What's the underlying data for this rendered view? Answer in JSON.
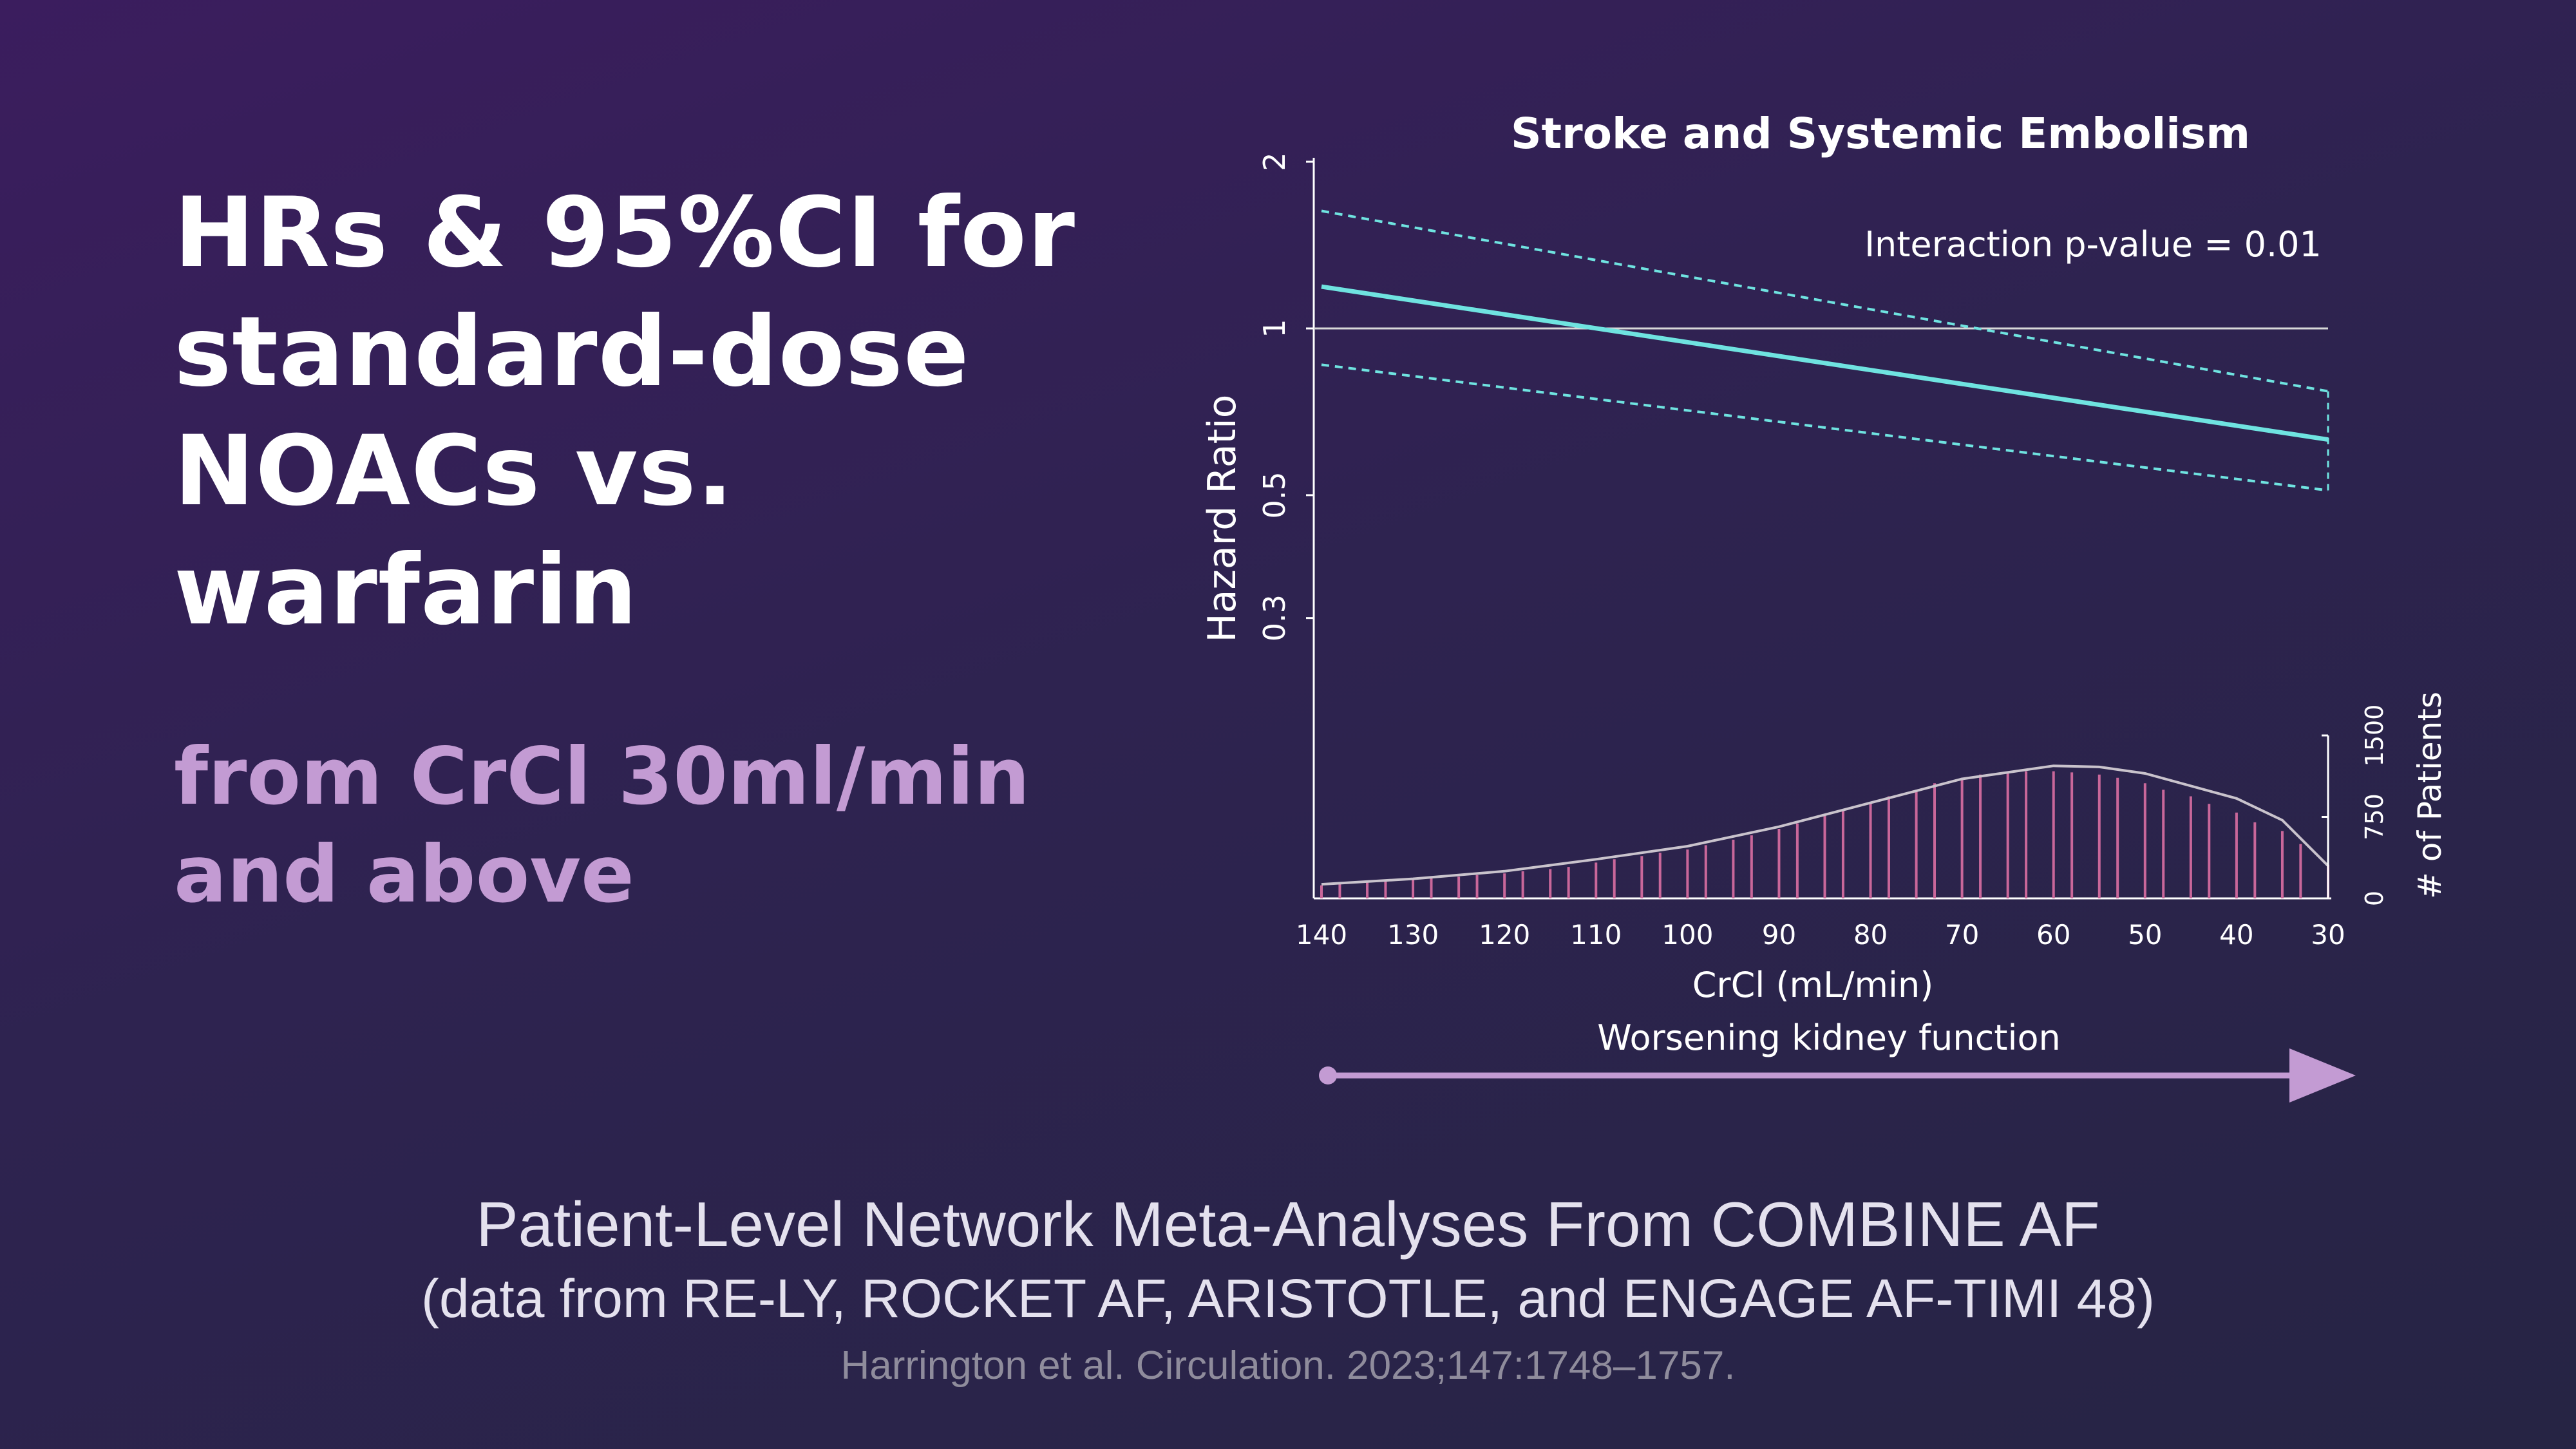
{
  "headline": {
    "line1": "HRs & 95%CI for",
    "line2": "standard-dose",
    "line3": "NOACs vs.",
    "line4": "warfarin"
  },
  "subhead": {
    "line1": "from CrCl 30ml/min",
    "line2": "and above"
  },
  "chart_data": {
    "type": "line",
    "title": "Stroke and Systemic Embolism",
    "annotation": "Interaction p-value = 0.01",
    "ylabel": "Hazard Ratio",
    "xlabel": "CrCl (mL/min)",
    "direction_label": "Worsening kidney function",
    "x_ticks": [
      "140",
      "130",
      "120",
      "110",
      "100",
      "90",
      "80",
      "70",
      "60",
      "50",
      "40",
      "30"
    ],
    "y_ticks": [
      "2",
      "1",
      "0.5",
      "0.3"
    ],
    "y_scale": "log",
    "reference_line": 1,
    "hr_line": {
      "x": [
        140,
        30
      ],
      "y": [
        1.19,
        0.63
      ]
    },
    "ci_upper": {
      "x": [
        140,
        30
      ],
      "y": [
        1.63,
        0.77
      ]
    },
    "ci_lower": {
      "x": [
        140,
        30
      ],
      "y": [
        0.86,
        0.51
      ]
    },
    "secondary_axis": {
      "label": "# of Patients",
      "ticks": [
        "0",
        "750",
        "1500"
      ],
      "range": [
        0,
        1500
      ]
    },
    "histogram": {
      "x": [
        140,
        138,
        135,
        133,
        130,
        128,
        125,
        123,
        120,
        118,
        115,
        113,
        110,
        108,
        105,
        103,
        100,
        98,
        95,
        93,
        90,
        88,
        85,
        83,
        80,
        78,
        75,
        73,
        70,
        68,
        65,
        63,
        60,
        58,
        55,
        53,
        50,
        48,
        45,
        43,
        40,
        38,
        35,
        33,
        30
      ],
      "values": [
        120,
        140,
        150,
        165,
        180,
        190,
        200,
        215,
        230,
        250,
        270,
        290,
        330,
        360,
        390,
        420,
        450,
        490,
        540,
        580,
        640,
        690,
        760,
        820,
        880,
        940,
        1000,
        1060,
        1110,
        1140,
        1160,
        1170,
        1170,
        1160,
        1140,
        1110,
        1060,
        1000,
        940,
        870,
        790,
        700,
        620,
        500,
        310
      ]
    },
    "density_curve": {
      "x": [
        140,
        130,
        120,
        110,
        100,
        90,
        80,
        70,
        60,
        55,
        50,
        40,
        35,
        30
      ],
      "values": [
        130,
        180,
        250,
        360,
        480,
        660,
        880,
        1100,
        1220,
        1210,
        1150,
        920,
        720,
        300
      ]
    },
    "colors": {
      "hr_line": "#6fe3e0",
      "ci": "#6fe3e0",
      "reference": "#d8d8d8",
      "histogram": "#c9679a",
      "density": "#c9c3cc",
      "axis": "#ffffff",
      "arrow": "#c39bd3"
    }
  },
  "footer": {
    "line1": "Patient-Level Network Meta-Analyses From COMBINE AF",
    "line2": "(data from RE-LY, ROCKET AF, ARISTOTLE, and ENGAGE AF-TIMI 48)",
    "line3": "Harrington et al. Circulation. 2023;147:1748–1757."
  }
}
